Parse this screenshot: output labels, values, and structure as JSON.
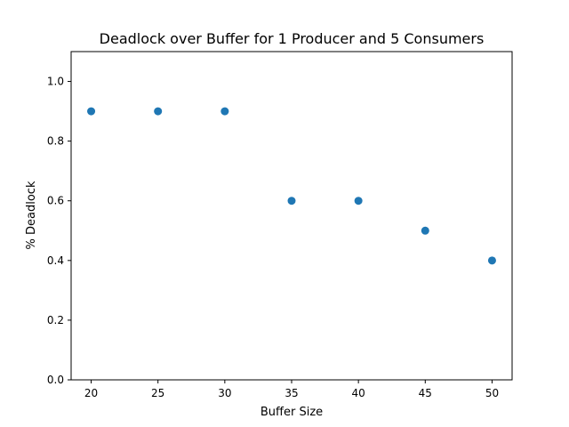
{
  "chart_data": {
    "type": "scatter",
    "title": "Deadlock over Buffer for 1 Producer and 5 Consumers",
    "xlabel": "Buffer Size",
    "ylabel": "% Deadlock",
    "xlim": [
      18.5,
      51.5
    ],
    "ylim": [
      0.0,
      1.1
    ],
    "xticks": [
      20,
      25,
      30,
      35,
      40,
      45,
      50
    ],
    "yticks": [
      0.0,
      0.2,
      0.4,
      0.6,
      0.8,
      1.0
    ],
    "grid": false,
    "marker_color": "#1f77b4",
    "series": [
      {
        "x": [
          20,
          25,
          30,
          35,
          40,
          45,
          50
        ],
        "y": [
          0.9,
          0.9,
          0.9,
          0.6,
          0.6,
          0.5,
          0.4
        ]
      }
    ]
  }
}
